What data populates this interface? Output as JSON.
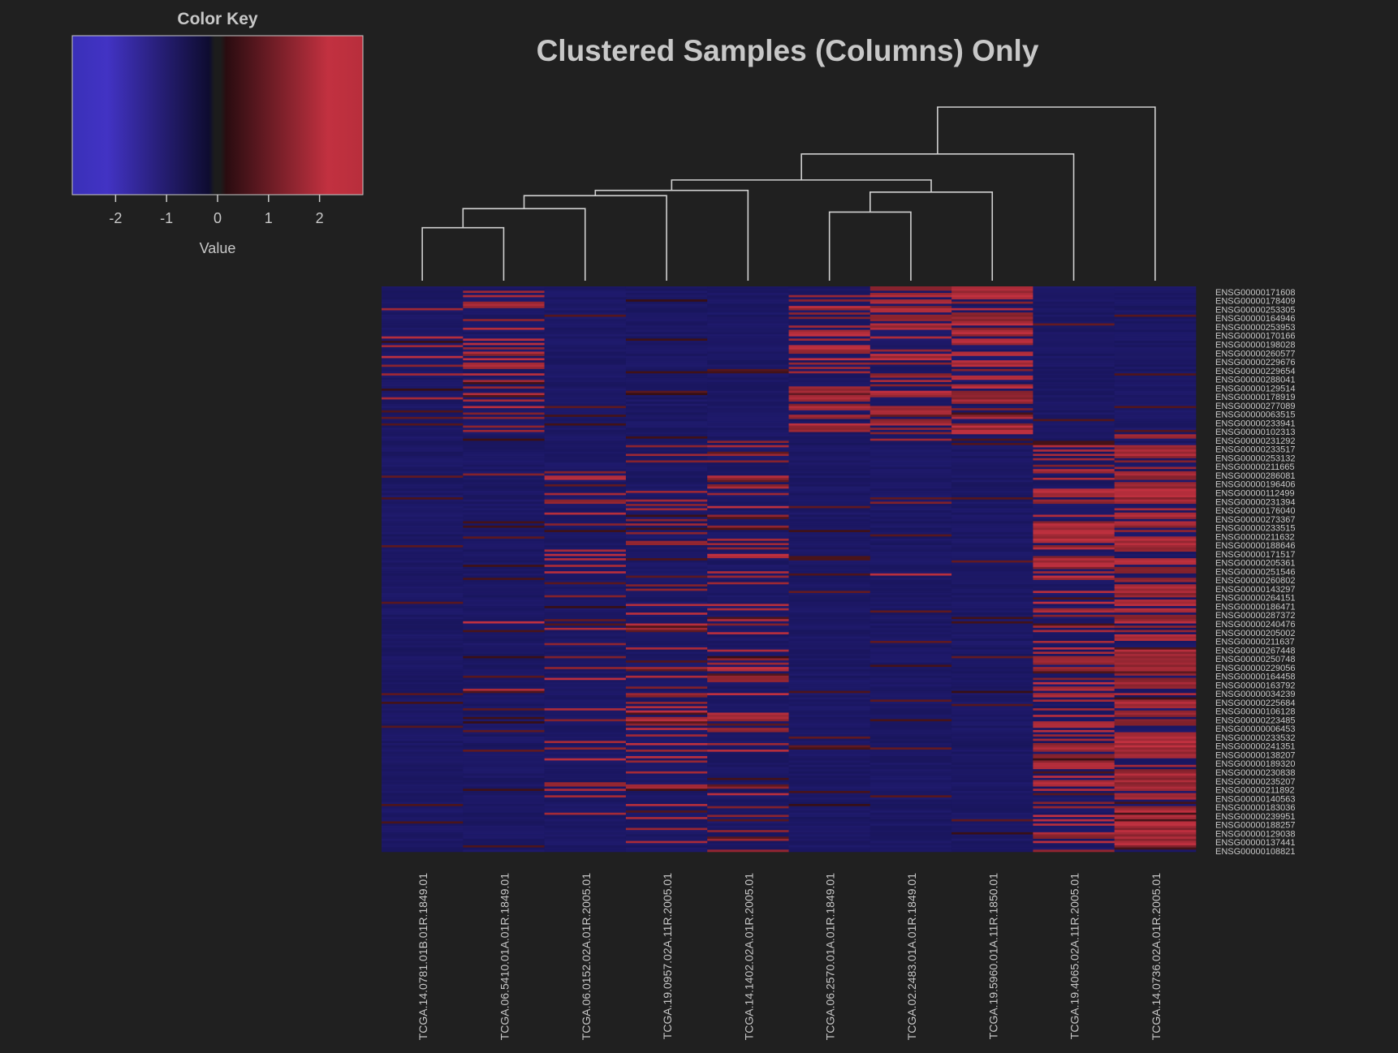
{
  "colors": {
    "background": "#202020",
    "text": "#c8c8c8",
    "dendrogram": "#d0d0d0",
    "low": "#3f33c3",
    "mid_low": "#12104a",
    "mid_high": "#2a0c10",
    "high": "#c23140",
    "center": "#1c1c1c"
  },
  "color_key": {
    "title": "Color Key",
    "xlabel": "Value",
    "range": [
      -2.85,
      2.85
    ],
    "ticks": [
      "-2",
      "-1",
      "0",
      "1",
      "2"
    ]
  },
  "chart_data": {
    "type": "heatmap",
    "title": "Clustered Samples (Columns) Only",
    "columns": [
      "TCGA.14.0781.01B.01R.1849.01",
      "TCGA.06.5410.01A.01R.1849.01",
      "TCGA.06.0152.02A.01R.2005.01",
      "TCGA.19.0957.02A.11R.2005.01",
      "TCGA.14.1402.02A.01R.2005.01",
      "TCGA.06.2570.01A.01R.1849.01",
      "TCGA.02.2483.01A.01R.1849.01",
      "TCGA.19.5960.01A.11R.1850.01",
      "TCGA.19.4065.02A.11R.2005.01",
      "TCGA.14.0736.02A.01R.2005.01"
    ],
    "row_labels": [
      "ENSG00000171608",
      "ENSG00000178409",
      "ENSG00000253305",
      "ENSG00000164946",
      "ENSG00000253953",
      "ENSG00000170166",
      "ENSG00000198028",
      "ENSG00000260577",
      "ENSG00000229676",
      "ENSG00000229654",
      "ENSG00000288041",
      "ENSG00000129514",
      "ENSG00000178919",
      "ENSG00000277089",
      "ENSG00000063515",
      "ENSG00000233941",
      "ENSG00000102313",
      "ENSG00000231292",
      "ENSG00000233517",
      "ENSG00000253132",
      "ENSG00000211665",
      "ENSG00000286081",
      "ENSG00000196406",
      "ENSG00000112499",
      "ENSG00000231394",
      "ENSG00000176040",
      "ENSG00000273367",
      "ENSG00000233515",
      "ENSG00000211632",
      "ENSG00000188646",
      "ENSG00000171517",
      "ENSG00000205361",
      "ENSG00000251546",
      "ENSG00000260802",
      "ENSG00000143297",
      "ENSG00000264151",
      "ENSG00000186471",
      "ENSG00000287372",
      "ENSG00000240476",
      "ENSG00000205002",
      "ENSG00000211637",
      "ENSG00000267448",
      "ENSG00000250748",
      "ENSG00000229056",
      "ENSG00000164458",
      "ENSG00000163792",
      "ENSG00000034239",
      "ENSG00000225684",
      "ENSG00000106128",
      "ENSG00000223485",
      "ENSG00000006453",
      "ENSG00000233532",
      "ENSG00000241351",
      "ENSG00000138207",
      "ENSG00000189320",
      "ENSG00000230838",
      "ENSG00000235207",
      "ENSG00000211892",
      "ENSG00000140563",
      "ENSG00000183036",
      "ENSG00000239951",
      "ENSG00000188257",
      "ENSG00000129038",
      "ENSG00000137441",
      "ENSG00000108821"
    ],
    "row_count": 260,
    "value_range": [
      -2.85,
      2.85
    ],
    "row_groups": [
      {
        "rows": [
          0,
          68
        ],
        "high_prob": [
          0.14,
          0.3,
          0.0,
          0.0,
          0.0,
          0.45,
          0.55,
          0.75,
          0.0,
          0.0
        ]
      },
      {
        "rows": [
          68,
          260
        ],
        "high_prob": [
          0.0,
          0.02,
          0.15,
          0.22,
          0.28,
          0.0,
          0.01,
          0.0,
          0.48,
          0.72
        ]
      }
    ],
    "column_dendrogram": {
      "merges": [
        {
          "left": "c0",
          "right": "c1",
          "height": 0.305
        },
        {
          "left": "m0",
          "right": "c2",
          "height": 0.415
        },
        {
          "left": "m1",
          "right": "c3",
          "height": 0.49
        },
        {
          "left": "m2",
          "right": "c4",
          "height": 0.52
        },
        {
          "left": "c5",
          "right": "c6",
          "height": 0.395
        },
        {
          "left": "m4",
          "right": "c7",
          "height": 0.51
        },
        {
          "left": "m3",
          "right": "m5",
          "height": 0.58
        },
        {
          "left": "m6",
          "right": "c8",
          "height": 0.73
        },
        {
          "left": "m7",
          "right": "c9",
          "height": 1.0
        }
      ]
    }
  }
}
